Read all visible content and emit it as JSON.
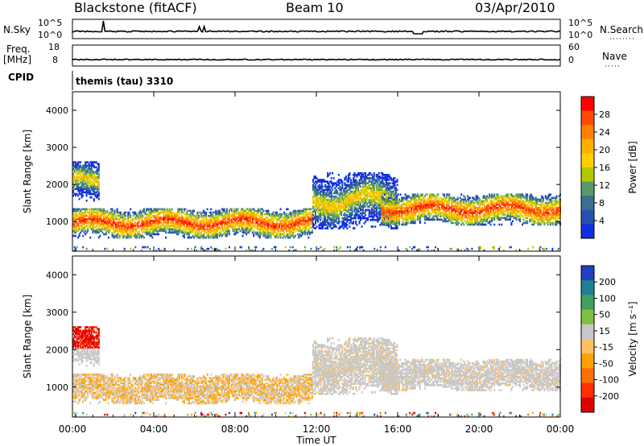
{
  "header": {
    "station": "Blackstone (fitACF)",
    "beam": "Beam 10",
    "date": "03/Apr/2010"
  },
  "strip": {
    "nsky_label": "N.Sky",
    "nsearch_label": "N.Search",
    "nsky_ticks": [
      "10^5",
      "10^0"
    ],
    "nsearch_ticks": [
      "10^5",
      "10^0"
    ],
    "freq_label": "Freq.",
    "freq_unit": "[MHz]",
    "freq_ticks": [
      "18",
      "8"
    ],
    "nave_label": "Nave",
    "nave_ticks": [
      "60",
      "0"
    ],
    "cpid_label": "CPID",
    "cpid_value": "themis (tau) 3310"
  },
  "panels": {
    "ylabel": "Slant Range [km]",
    "yticks": [
      "4000",
      "3000",
      "2000",
      "1000"
    ],
    "xticks": [
      "00:00",
      "04:00",
      "08:00",
      "12:00",
      "16:00",
      "20:00",
      "00:00"
    ],
    "xlabel": "Time UT"
  },
  "colorbars": {
    "power": {
      "label": "Power [dB]",
      "ticks": [
        "28",
        "24",
        "20",
        "16",
        "12",
        "8",
        "4"
      ],
      "colors": [
        "#ff0000",
        "#ff4a00",
        "#ff8000",
        "#ffb000",
        "#ffcf00",
        "#b0c800",
        "#5a9a6a",
        "#3a7090",
        "#2850b0",
        "#1030e0"
      ]
    },
    "velocity": {
      "label": "Velocity [m s⁻¹]",
      "ticks": [
        "200",
        "100",
        "50",
        "15",
        "-15",
        "-50",
        "-100",
        "-200"
      ],
      "colors": [
        "#2040c0",
        "#208090",
        "#40a060",
        "#80c040",
        "#c8c8c8",
        "#ffc060",
        "#ffa000",
        "#ff7000",
        "#ff3000",
        "#e00000"
      ]
    }
  },
  "chart_data": {
    "type": "heatmap",
    "x_unit": "hours UT (00:00 to 24:00)",
    "xlim": [
      0,
      24
    ],
    "ylim": [
      200,
      4500
    ],
    "y_unit": "km",
    "grid": false,
    "echo_regions": [
      {
        "name": "near-range band",
        "t_start": 0.0,
        "t_end": 11.8,
        "range_min": 550,
        "range_max": 1350
      },
      {
        "name": "early far band",
        "t_start": 0.0,
        "t_end": 1.3,
        "range_min": 1500,
        "range_max": 2600
      },
      {
        "name": "afternoon scatter",
        "t_start": 11.8,
        "t_end": 16.0,
        "range_min": 800,
        "range_max": 2300
      },
      {
        "name": "evening band",
        "t_start": 15.2,
        "t_end": 24.0,
        "range_min": 900,
        "range_max": 1750
      },
      {
        "name": "ground scatter floor",
        "t_start": 0.0,
        "t_end": 24.0,
        "range_min": 200,
        "range_max": 320
      }
    ],
    "power_db": {
      "min": 0,
      "max": 32
    },
    "velocity_ms": {
      "min": -250,
      "max": 250
    }
  }
}
